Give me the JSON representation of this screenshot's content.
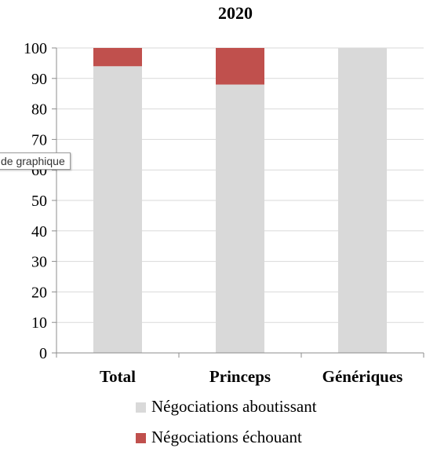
{
  "chart_data": {
    "type": "bar",
    "stacked": true,
    "title": "2020",
    "categories": [
      "Total",
      "Princeps",
      "Génériques"
    ],
    "series": [
      {
        "name": "Négociations aboutissant",
        "values": [
          94,
          88,
          100
        ],
        "color": "#d9d9d9"
      },
      {
        "name": "Négociations échouant",
        "values": [
          6,
          12,
          0
        ],
        "color": "#c0504d"
      }
    ],
    "ylim": [
      0,
      100
    ],
    "yticks": [
      0,
      10,
      20,
      30,
      40,
      50,
      60,
      70,
      80,
      90,
      100
    ],
    "grid": true,
    "legend": "bottom"
  },
  "tooltip": {
    "text": "de graphique"
  }
}
